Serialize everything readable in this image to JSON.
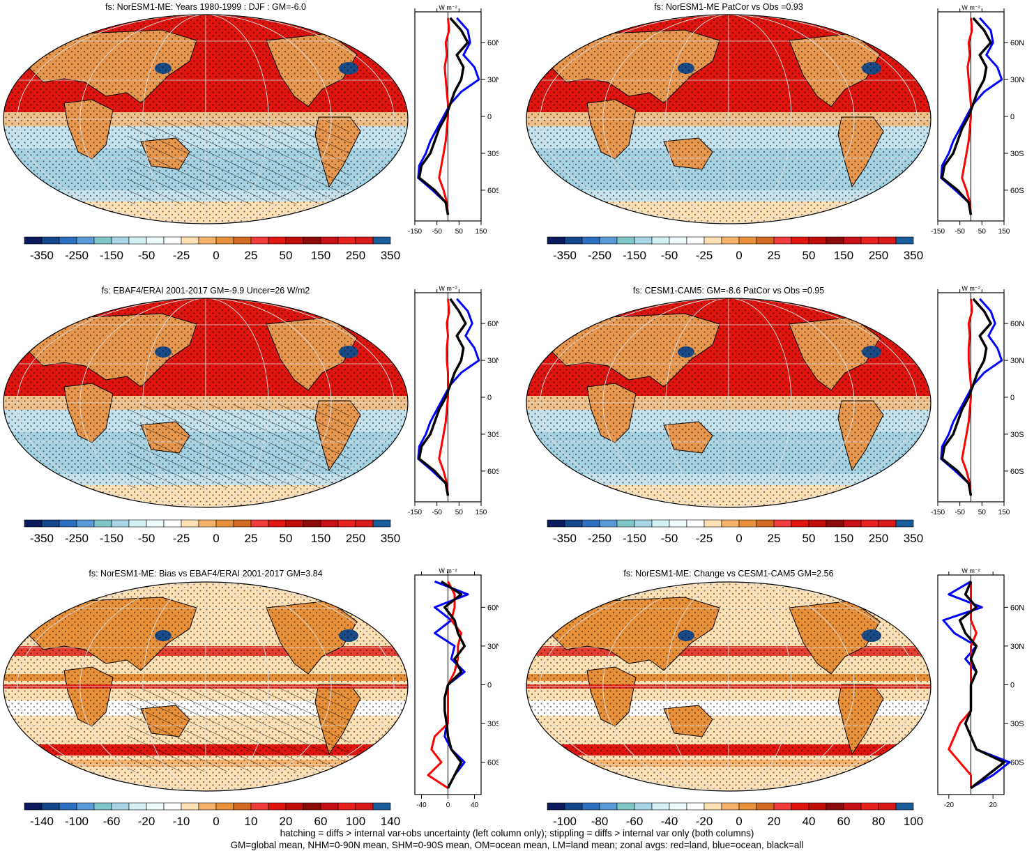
{
  "colors": {
    "land": "#e8974f",
    "ocean": "#c4e3ee",
    "hot": "#e0150f",
    "cold": "#1a4b86",
    "line_land": "#ff0000",
    "line_ocean": "#0000ff",
    "line_all": "#000000"
  },
  "palette": [
    "#0a1a5c",
    "#14468c",
    "#2c6fbf",
    "#5a9ad6",
    "#7fc6c8",
    "#a7d5e6",
    "#d4f1f5",
    "#eefbfc",
    "#ffffff",
    "#fde0b4",
    "#f6b26b",
    "#e8913a",
    "#d36a22",
    "#f03c3a",
    "#e0150f",
    "#c00d0a",
    "#8c0a0a",
    "#c80f14",
    "#e8211e",
    "#d8191a",
    "#1a5b9a"
  ],
  "panels": [
    {
      "title": "fs: NorESM1-ME: Years 1980-1999 : DJF : GM=-6.0",
      "colorbar_labels": [
        "-350",
        "-250",
        "-150",
        "-50",
        "-25",
        "0",
        "25",
        "50",
        "150",
        "250",
        "350"
      ],
      "zonal": {
        "ylabels": [
          "60N",
          "30N",
          "0",
          "30S",
          "60S"
        ],
        "xlabels": [
          "-150",
          "-50",
          "50",
          "150"
        ],
        "unit": "W m⁻²",
        "xlim": [
          -150,
          150
        ],
        "lat": [
          80,
          70,
          60,
          50,
          40,
          30,
          20,
          10,
          0,
          -10,
          -20,
          -30,
          -40,
          -50,
          -60,
          -70,
          -80
        ],
        "all": [
          10,
          60,
          90,
          40,
          70,
          60,
          30,
          10,
          -10,
          -40,
          -60,
          -80,
          -120,
          -130,
          -60,
          -10,
          0
        ],
        "ocean": [
          40,
          90,
          100,
          70,
          120,
          140,
          60,
          10,
          -20,
          -50,
          -80,
          -100,
          -130,
          -135,
          -70,
          -10,
          0
        ],
        "land": [
          0,
          5,
          -10,
          -5,
          -15,
          -10,
          -5,
          0,
          0,
          -5,
          -10,
          -20,
          -30,
          -40,
          -20,
          -5,
          0
        ]
      }
    },
    {
      "title": "fs: NorESM1-ME PatCor vs Obs =0.93",
      "colorbar_labels": [
        "-350",
        "-250",
        "-150",
        "-50",
        "-25",
        "0",
        "25",
        "50",
        "150",
        "250",
        "350"
      ],
      "zonal": {
        "ylabels": [
          "60N",
          "30N",
          "0",
          "30S",
          "60S"
        ],
        "xlabels": [
          "-150",
          "-50",
          "50",
          "150"
        ],
        "unit": "W m⁻²",
        "xlim": [
          -150,
          150
        ],
        "lat": [
          80,
          70,
          60,
          50,
          40,
          30,
          20,
          10,
          0,
          -10,
          -20,
          -30,
          -40,
          -50,
          -60,
          -70,
          -80
        ],
        "all": [
          10,
          60,
          90,
          40,
          70,
          60,
          30,
          10,
          -10,
          -40,
          -60,
          -80,
          -120,
          -130,
          -60,
          -10,
          0
        ],
        "ocean": [
          40,
          90,
          100,
          70,
          120,
          140,
          60,
          10,
          -20,
          -50,
          -80,
          -100,
          -130,
          -135,
          -70,
          -10,
          0
        ],
        "land": [
          0,
          5,
          -10,
          -5,
          -15,
          -10,
          -5,
          0,
          0,
          -5,
          -10,
          -20,
          -30,
          -40,
          -20,
          -5,
          0
        ]
      }
    },
    {
      "title": "fs: EBAF4/ERAI 2001-2017 GM=-9.9 Uncer=26 W/m2",
      "colorbar_labels": [
        "-350",
        "-250",
        "-150",
        "-50",
        "-25",
        "0",
        "25",
        "50",
        "150",
        "250",
        "350"
      ],
      "zonal": {
        "ylabels": [
          "60N",
          "30N",
          "0",
          "30S",
          "60S"
        ],
        "xlabels": [
          "-150",
          "-50",
          "50",
          "150"
        ],
        "unit": "W m⁻²",
        "xlim": [
          -150,
          150
        ],
        "lat": [
          80,
          70,
          60,
          50,
          40,
          30,
          20,
          10,
          0,
          -10,
          -20,
          -30,
          -40,
          -50,
          -60,
          -70,
          -80
        ],
        "all": [
          10,
          50,
          80,
          40,
          70,
          60,
          30,
          10,
          -10,
          -40,
          -60,
          -80,
          -120,
          -130,
          -60,
          -10,
          0
        ],
        "ocean": [
          40,
          90,
          110,
          80,
          120,
          140,
          60,
          10,
          -20,
          -50,
          -80,
          -100,
          -130,
          -135,
          -70,
          -10,
          0
        ],
        "land": [
          0,
          5,
          -5,
          0,
          -5,
          -5,
          0,
          0,
          0,
          -5,
          -10,
          -20,
          -30,
          -40,
          -20,
          -5,
          0
        ]
      }
    },
    {
      "title": "fs: CESM1-CAM5: GM=-8.6 PatCor vs Obs =0.95",
      "colorbar_labels": [
        "-350",
        "-250",
        "-150",
        "-50",
        "-25",
        "0",
        "25",
        "50",
        "150",
        "250",
        "350"
      ],
      "zonal": {
        "ylabels": [
          "60N",
          "30N",
          "0",
          "30S",
          "60S"
        ],
        "xlabels": [
          "-150",
          "-50",
          "50",
          "150"
        ],
        "unit": "W m⁻²",
        "xlim": [
          -150,
          150
        ],
        "lat": [
          80,
          70,
          60,
          50,
          40,
          30,
          20,
          10,
          0,
          -10,
          -20,
          -30,
          -40,
          -50,
          -60,
          -70,
          -80
        ],
        "all": [
          10,
          60,
          90,
          40,
          70,
          60,
          30,
          10,
          -10,
          -40,
          -60,
          -80,
          -120,
          -130,
          -60,
          -10,
          0
        ],
        "ocean": [
          40,
          90,
          110,
          80,
          120,
          140,
          60,
          10,
          -20,
          -50,
          -80,
          -100,
          -130,
          -135,
          -70,
          -10,
          0
        ],
        "land": [
          0,
          5,
          -10,
          -5,
          -10,
          -10,
          -5,
          0,
          0,
          -5,
          -10,
          -20,
          -30,
          -40,
          -20,
          -5,
          0
        ]
      }
    },
    {
      "title": "fs: NorESM1-ME: Bias vs EBAF4/ERAI 2001-2017 GM=3.84",
      "colorbar_labels": [
        "-140",
        "-100",
        "-60",
        "-20",
        "-10",
        "0",
        "10",
        "20",
        "60",
        "100",
        "140"
      ],
      "zonal": {
        "ylabels": [
          "60N",
          "30N",
          "0",
          "30S",
          "60S"
        ],
        "xlabels": [
          "-40",
          "0",
          "40"
        ],
        "unit": "W m⁻²",
        "xlim": [
          -50,
          50
        ],
        "lat": [
          80,
          70,
          60,
          50,
          40,
          30,
          20,
          10,
          0,
          -10,
          -20,
          -30,
          -40,
          -50,
          -60,
          -70,
          -80
        ],
        "all": [
          -10,
          20,
          -5,
          10,
          15,
          25,
          10,
          20,
          0,
          -5,
          -5,
          -2,
          0,
          5,
          20,
          10,
          0
        ],
        "ocean": [
          -20,
          30,
          -20,
          5,
          -20,
          10,
          5,
          25,
          0,
          -5,
          -5,
          -2,
          -5,
          5,
          25,
          10,
          0
        ],
        "land": [
          0,
          10,
          10,
          5,
          20,
          15,
          15,
          10,
          0,
          0,
          0,
          0,
          -20,
          -25,
          -10,
          -30,
          0
        ]
      }
    },
    {
      "title": "fs: NorESM1-ME: Change vs CESM1-CAM5 GM=2.56",
      "colorbar_labels": [
        "-100",
        "-80",
        "-60",
        "-40",
        "-20",
        "0",
        "20",
        "40",
        "60",
        "80",
        "100"
      ],
      "zonal": {
        "ylabels": [
          "60N",
          "30N",
          "0",
          "30S",
          "60S"
        ],
        "xlabels": [
          "-20",
          "20"
        ],
        "unit": "W m⁻²",
        "xlim": [
          -30,
          30
        ],
        "lat": [
          80,
          70,
          60,
          50,
          40,
          30,
          20,
          10,
          0,
          -10,
          -20,
          -30,
          -40,
          -50,
          -60,
          -70,
          -80
        ],
        "all": [
          0,
          -5,
          5,
          -10,
          -5,
          5,
          0,
          5,
          0,
          0,
          0,
          -5,
          0,
          5,
          30,
          15,
          0
        ],
        "ocean": [
          0,
          -20,
          10,
          -25,
          -15,
          5,
          -5,
          5,
          0,
          0,
          0,
          -5,
          0,
          5,
          35,
          20,
          0
        ],
        "land": [
          0,
          0,
          0,
          0,
          5,
          0,
          0,
          0,
          0,
          0,
          0,
          -10,
          -15,
          -20,
          -10,
          0,
          0
        ]
      }
    }
  ],
  "footer": {
    "line1": "hatching = diffs > internal var+obs uncertainty (left column only); stippling = diffs > internal var only (both columns)",
    "line2": "GM=global mean, NHM=0-90N mean, SHM=0-90S mean, OM=ocean mean, LM=land mean; zonal avgs: red=land, blue=ocean, black=all"
  }
}
